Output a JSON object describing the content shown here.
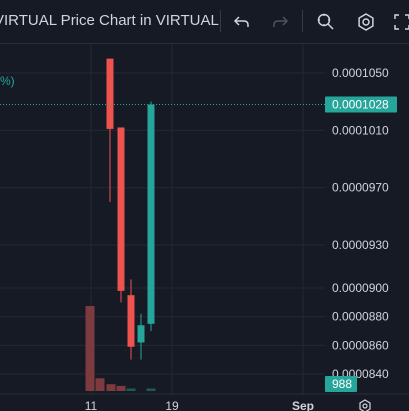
{
  "window": {
    "title": "VIRTUAL Price Chart in VIRTUAL",
    "pct_fragment": "%)"
  },
  "toolbar": {
    "icons": [
      "undo-icon",
      "redo-icon",
      "magnifier-settings-icon",
      "gear-icon",
      "fullscreen-icon"
    ]
  },
  "colors": {
    "background": "#161a25",
    "grid": "#242833",
    "up": "#26a69a",
    "down": "#ef5350",
    "volume_down": "#7d3b40",
    "volume_up": "#1e5a55",
    "axis_text": "#d1d4dc"
  },
  "chart_data": {
    "type": "candlestick",
    "y_ticks": [
      "0.0001050",
      "0.0001010",
      "0.0000970",
      "0.0000930",
      "0.0000900",
      "0.0000880",
      "0.0000860",
      "0.0000840"
    ],
    "x_ticks": [
      "11",
      "19",
      "Sep"
    ],
    "current_price_label": "0.0001028",
    "volume_label": "988",
    "candles": [
      {
        "open": 0.0001053,
        "high": 0.000106,
        "low": 0.000102,
        "close": 0.0001018
      },
      {
        "open": 0.000106,
        "high": 0.000106,
        "low": 9.6e-05,
        "close": 0.0001011
      },
      {
        "open": 0.0001012,
        "high": 0.0001012,
        "low": 8.9e-05,
        "close": 8.98e-05
      },
      {
        "open": 8.95e-05,
        "high": 9.06e-05,
        "low": 8.5e-05,
        "close": 8.59e-05
      },
      {
        "open": 8.62e-05,
        "high": 8.82e-05,
        "low": 8.5e-05,
        "close": 8.74e-05
      },
      {
        "open": 8.75e-05,
        "high": 0.000103,
        "low": 8.7e-05,
        "close": 0.0001028
      }
    ],
    "volumes": [
      1.0,
      0.15,
      0.08,
      0.06,
      0.03,
      0.03
    ]
  }
}
